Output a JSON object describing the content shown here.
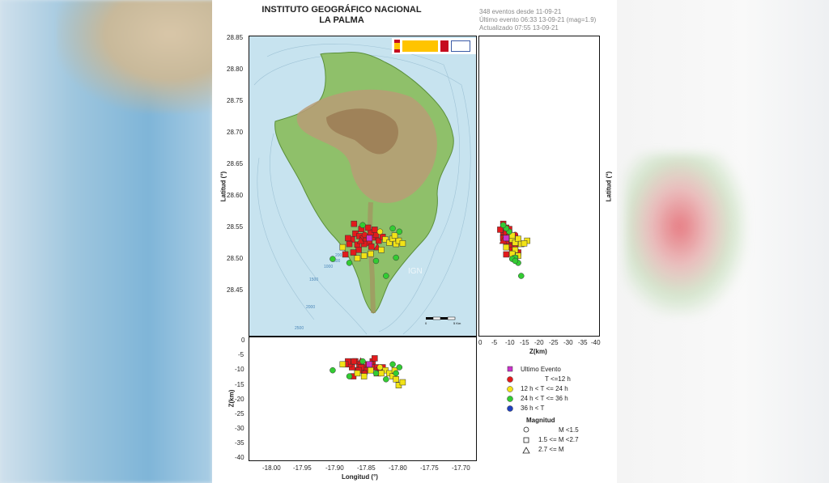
{
  "header": {
    "title_line1": "INSTITUTO GEOGRÁFICO NACIONAL",
    "title_line2": "LA PALMA",
    "events_count": "348 eventos desde 11-09-21",
    "last_event": "Último evento 06:33 13-09-21   (mag=1.9)",
    "updated": "Actualizado   07:55  13-09-21"
  },
  "map": {
    "watermark": "IGN",
    "lat_label": "Latitud (°)",
    "lat_ticks": [
      "28.85",
      "28.80",
      "28.75",
      "28.70",
      "28.65",
      "28.60",
      "28.55",
      "28.50",
      "28.45"
    ],
    "depth_contours": [
      "200",
      "500",
      "1000",
      "1500",
      "2000",
      "2500"
    ],
    "scale_bar_labels": [
      "0",
      "5 Km"
    ]
  },
  "depth_lat": {
    "lat_label": "Latitud (°)",
    "z_ticks": [
      "0",
      "-5",
      "-10",
      "-15",
      "-20",
      "-25",
      "-30",
      "-35",
      "-40"
    ],
    "z_label": "Z(km)"
  },
  "depth_lon": {
    "z_label": "Z(km)",
    "z_ticks": [
      "0",
      "-5",
      "-10",
      "-15",
      "-20",
      "-25",
      "-30",
      "-35",
      "-40"
    ],
    "lon_ticks": [
      "-18.00",
      "-17.95",
      "-17.90",
      "-17.85",
      "-17.80",
      "-17.75",
      "-17.70"
    ],
    "lon_label": "Longitud (°)"
  },
  "legend": {
    "items": [
      {
        "label": "Ultimo Evento",
        "color": "#cc33cc",
        "shape": "square"
      },
      {
        "label": "T <=12 h",
        "color": "#e31a1c",
        "shape": "circle"
      },
      {
        "label": "12 h  < T <= 24 h",
        "color": "#f2e316",
        "shape": "circle"
      },
      {
        "label": "24 h  < T <= 36 h",
        "color": "#33cc33",
        "shape": "circle"
      },
      {
        "label": "36 h  <  T",
        "color": "#1f3fbf",
        "shape": "circle"
      }
    ],
    "magnitude_title": "Magnitud",
    "magnitude_items": [
      {
        "label": "M <1.5",
        "shape": "circle"
      },
      {
        "label": "1.5 <= M <2.7",
        "shape": "square"
      },
      {
        "label": "2.7 <= M",
        "shape": "triangle"
      }
    ]
  },
  "colors": {
    "sea": "#c7e3ef",
    "recent": "#e31a1c",
    "mid": "#f2e316",
    "old": "#33cc33",
    "older": "#1f3fbf",
    "last": "#cc33cc"
  },
  "chart_data": {
    "type": "scatter",
    "xlim": [
      -18.03,
      -17.69
    ],
    "ylim": [
      28.42,
      28.88
    ],
    "zlim": [
      0,
      -40
    ],
    "events": [
      {
        "lon": -17.871,
        "lat": 28.577,
        "z": -8,
        "group": "recent",
        "mag": "square"
      },
      {
        "lon": -17.865,
        "lat": 28.573,
        "z": -9,
        "group": "recent",
        "mag": "square"
      },
      {
        "lon": -17.86,
        "lat": 28.569,
        "z": -10,
        "group": "recent",
        "mag": "square"
      },
      {
        "lon": -17.855,
        "lat": 28.566,
        "z": -11,
        "group": "recent",
        "mag": "square"
      },
      {
        "lon": -17.85,
        "lat": 28.563,
        "z": -9,
        "group": "recent",
        "mag": "square"
      },
      {
        "lon": -17.845,
        "lat": 28.571,
        "z": -8,
        "group": "recent",
        "mag": "square"
      },
      {
        "lon": -17.84,
        "lat": 28.575,
        "z": -10,
        "group": "recent",
        "mag": "square"
      },
      {
        "lon": -17.848,
        "lat": 28.579,
        "z": -9,
        "group": "recent",
        "mag": "square"
      },
      {
        "lon": -17.858,
        "lat": 28.561,
        "z": -12,
        "group": "recent",
        "mag": "square"
      },
      {
        "lon": -17.868,
        "lat": 28.56,
        "z": -11,
        "group": "recent",
        "mag": "square"
      },
      {
        "lon": -17.876,
        "lat": 28.568,
        "z": -10,
        "group": "recent",
        "mag": "square"
      },
      {
        "lon": -17.88,
        "lat": 28.561,
        "z": -9,
        "group": "recent",
        "mag": "square"
      },
      {
        "lon": -17.882,
        "lat": 28.57,
        "z": -8,
        "group": "recent",
        "mag": "square"
      },
      {
        "lon": -17.836,
        "lat": 28.566,
        "z": -11,
        "group": "recent",
        "mag": "square"
      },
      {
        "lon": -17.842,
        "lat": 28.583,
        "z": -7,
        "group": "recent",
        "mag": "square"
      },
      {
        "lon": -17.852,
        "lat": 28.586,
        "z": -9,
        "group": "recent",
        "mag": "square"
      },
      {
        "lon": -17.862,
        "lat": 28.584,
        "z": -10,
        "group": "recent",
        "mag": "square"
      },
      {
        "lon": -17.873,
        "lat": 28.592,
        "z": -8,
        "group": "recent",
        "mag": "square"
      },
      {
        "lon": -17.857,
        "lat": 28.575,
        "z": -12,
        "group": "recent",
        "mag": "circle"
      },
      {
        "lon": -17.847,
        "lat": 28.557,
        "z": -10,
        "group": "recent",
        "mag": "square"
      },
      {
        "lon": -17.866,
        "lat": 28.552,
        "z": -11,
        "group": "recent",
        "mag": "square"
      },
      {
        "lon": -17.874,
        "lat": 28.548,
        "z": -13,
        "group": "recent",
        "mag": "square"
      },
      {
        "lon": -17.886,
        "lat": 28.545,
        "z": -9,
        "group": "recent",
        "mag": "square"
      },
      {
        "lon": -17.83,
        "lat": 28.572,
        "z": -10,
        "group": "recent",
        "mag": "square"
      },
      {
        "lon": -17.838,
        "lat": 28.556,
        "z": -12,
        "group": "recent",
        "mag": "triangle"
      },
      {
        "lon": -17.863,
        "lat": 28.566,
        "z": -8,
        "group": "recent",
        "mag": "triangle"
      },
      {
        "lon": -17.85,
        "lat": 28.57,
        "z": -9,
        "group": "last",
        "mag": "square"
      },
      {
        "lon": -17.826,
        "lat": 28.568,
        "z": -11,
        "group": "mid",
        "mag": "square"
      },
      {
        "lon": -17.82,
        "lat": 28.563,
        "z": -12,
        "group": "mid",
        "mag": "square"
      },
      {
        "lon": -17.815,
        "lat": 28.569,
        "z": -13,
        "group": "mid",
        "mag": "square"
      },
      {
        "lon": -17.81,
        "lat": 28.561,
        "z": -14,
        "group": "mid",
        "mag": "square"
      },
      {
        "lon": -17.806,
        "lat": 28.566,
        "z": -16,
        "group": "mid",
        "mag": "square"
      },
      {
        "lon": -17.832,
        "lat": 28.552,
        "z": -12,
        "group": "mid",
        "mag": "square"
      },
      {
        "lon": -17.848,
        "lat": 28.546,
        "z": -11,
        "group": "mid",
        "mag": "square"
      },
      {
        "lon": -17.858,
        "lat": 28.543,
        "z": -13,
        "group": "mid",
        "mag": "square"
      },
      {
        "lon": -17.89,
        "lat": 28.556,
        "z": -9,
        "group": "mid",
        "mag": "square"
      },
      {
        "lon": -17.834,
        "lat": 28.58,
        "z": -10,
        "group": "mid",
        "mag": "circle"
      },
      {
        "lon": -17.868,
        "lat": 28.539,
        "z": -12,
        "group": "mid",
        "mag": "square"
      },
      {
        "lon": -17.8,
        "lat": 28.562,
        "z": -15,
        "group": "mid",
        "mag": "square"
      },
      {
        "lon": -17.812,
        "lat": 28.574,
        "z": -11,
        "group": "mid",
        "mag": "square"
      },
      {
        "lon": -17.805,
        "lat": 28.58,
        "z": -10,
        "group": "old",
        "mag": "circle"
      },
      {
        "lon": -17.815,
        "lat": 28.585,
        "z": -9,
        "group": "old",
        "mag": "circle"
      },
      {
        "lon": -17.81,
        "lat": 28.54,
        "z": -12,
        "group": "old",
        "mag": "circle"
      },
      {
        "lon": -17.825,
        "lat": 28.512,
        "z": -14,
        "group": "old",
        "mag": "circle"
      },
      {
        "lon": -17.905,
        "lat": 28.538,
        "z": -11,
        "group": "old",
        "mag": "circle"
      },
      {
        "lon": -17.88,
        "lat": 28.532,
        "z": -13,
        "group": "old",
        "mag": "circle"
      },
      {
        "lon": -17.84,
        "lat": 28.535,
        "z": -12,
        "group": "old",
        "mag": "circle"
      },
      {
        "lon": -17.86,
        "lat": 28.59,
        "z": -8,
        "group": "old",
        "mag": "circle"
      }
    ]
  }
}
